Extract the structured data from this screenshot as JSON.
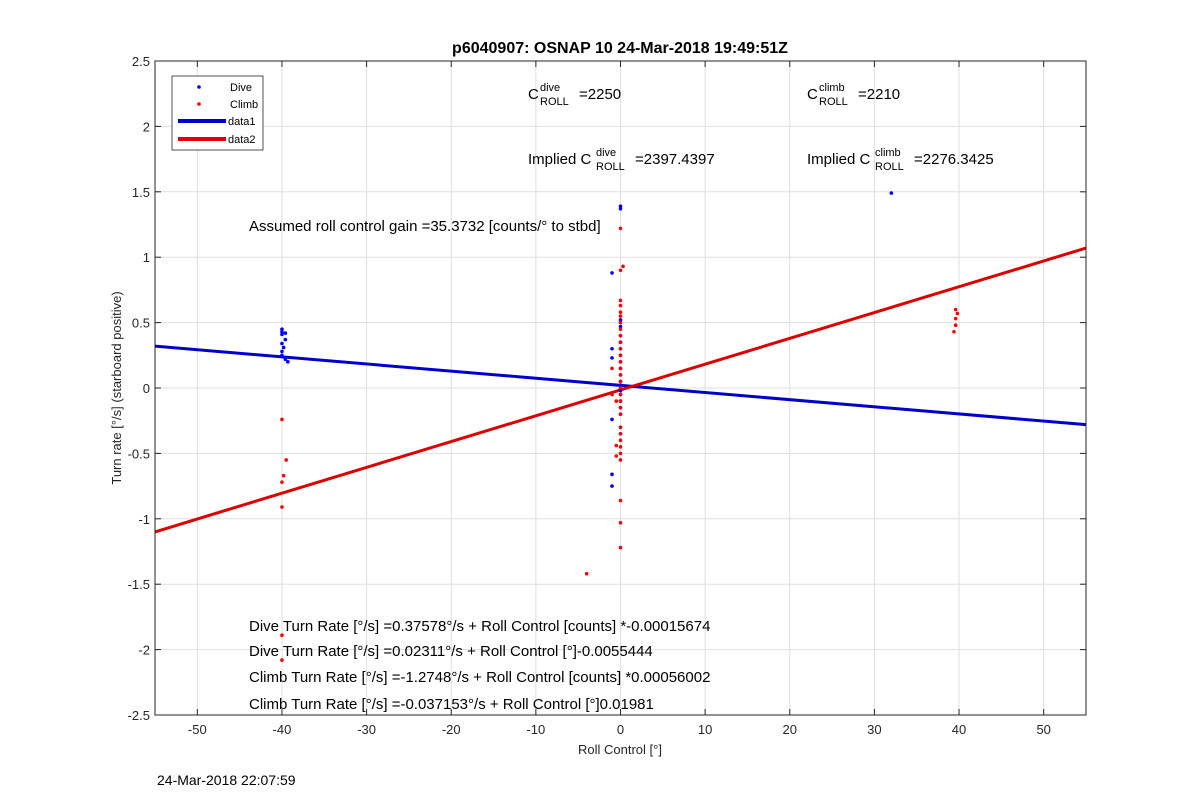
{
  "chart_data": {
    "type": "scatter",
    "title": "p6040907: OSNAP 10 24-Mar-2018 19:49:51Z",
    "xlabel": "Roll Control [°]",
    "ylabel": "Turn rate [°/s] (starboard positive)",
    "xlim": [
      -55,
      55
    ],
    "ylim": [
      -2.5,
      2.5
    ],
    "xticks": [
      -50,
      -40,
      -30,
      -20,
      -10,
      0,
      10,
      20,
      30,
      40,
      50
    ],
    "yticks": [
      -2.5,
      -2,
      -1.5,
      -1,
      -0.5,
      0,
      0.5,
      1,
      1.5,
      2,
      2.5
    ],
    "grid": true,
    "legend_position": "top-left",
    "series": [
      {
        "name": "Dive",
        "kind": "points",
        "color": "#0000ff",
        "points": [
          [
            -40,
            0.45
          ],
          [
            -40,
            0.43
          ],
          [
            -40,
            0.41
          ],
          [
            -39.6,
            0.42
          ],
          [
            -39.6,
            0.37
          ],
          [
            -40,
            0.34
          ],
          [
            -39.8,
            0.31
          ],
          [
            -40,
            0.28
          ],
          [
            -40,
            0.25
          ],
          [
            -39.6,
            0.22
          ],
          [
            -39.3,
            0.2
          ],
          [
            -1,
            0.88
          ],
          [
            -1,
            0.3
          ],
          [
            -1,
            0.23
          ],
          [
            -1,
            -0.24
          ],
          [
            -1,
            -0.66
          ],
          [
            -1,
            -0.75
          ],
          [
            0,
            1.39
          ],
          [
            0,
            1.37
          ],
          [
            0,
            0.52
          ],
          [
            0,
            0.47
          ],
          [
            0,
            0.4
          ],
          [
            0,
            0.35
          ],
          [
            0,
            0.3
          ],
          [
            0,
            0.25
          ],
          [
            0,
            0.2
          ],
          [
            0,
            0.15
          ],
          [
            0,
            0.1
          ],
          [
            0,
            0.05
          ],
          [
            0,
            0.02
          ],
          [
            0,
            -0.02
          ],
          [
            0,
            -0.05
          ],
          [
            0,
            -0.1
          ],
          [
            0,
            -0.15
          ],
          [
            0,
            -0.2
          ],
          [
            0,
            -0.3
          ],
          [
            0,
            -0.35
          ],
          [
            32,
            1.49
          ]
        ]
      },
      {
        "name": "Climb",
        "kind": "points",
        "color": "#ff0000",
        "points": [
          [
            0,
            1.22
          ],
          [
            0.3,
            0.93
          ],
          [
            0,
            0.9
          ],
          [
            0,
            0.67
          ],
          [
            0,
            0.63
          ],
          [
            0,
            0.58
          ],
          [
            0,
            0.55
          ],
          [
            0,
            0.5
          ],
          [
            0,
            0.45
          ],
          [
            0,
            0.4
          ],
          [
            0,
            0.35
          ],
          [
            0,
            0.3
          ],
          [
            0,
            0.25
          ],
          [
            0,
            0.2
          ],
          [
            0,
            0.15
          ],
          [
            0,
            0.1
          ],
          [
            0,
            0.05
          ],
          [
            0,
            0
          ],
          [
            0,
            -0.05
          ],
          [
            0,
            -0.1
          ],
          [
            0,
            -0.15
          ],
          [
            0,
            -0.2
          ],
          [
            0,
            -0.3
          ],
          [
            0,
            -0.35
          ],
          [
            0,
            -0.4
          ],
          [
            0,
            -0.45
          ],
          [
            0,
            -0.5
          ],
          [
            0,
            -0.55
          ],
          [
            0,
            -0.86
          ],
          [
            0,
            -1.03
          ],
          [
            0,
            -1.22
          ],
          [
            -1,
            0.15
          ],
          [
            -1,
            -0.05
          ],
          [
            -0.5,
            -0.1
          ],
          [
            -0.5,
            -0.44
          ],
          [
            -0.5,
            -0.52
          ],
          [
            -40,
            -0.24
          ],
          [
            -39.5,
            -0.55
          ],
          [
            -39.8,
            -0.67
          ],
          [
            -40,
            -0.72
          ],
          [
            -40,
            -0.91
          ],
          [
            -40,
            -1.89
          ],
          [
            -40,
            -2.08
          ],
          [
            -4,
            -1.42
          ],
          [
            39.6,
            0.6
          ],
          [
            39.8,
            0.57
          ],
          [
            39.6,
            0.53
          ],
          [
            39.6,
            0.48
          ],
          [
            39.4,
            0.43
          ]
        ]
      },
      {
        "name": "data1",
        "kind": "line",
        "color": "#0000cc",
        "x": [
          -55,
          55
        ],
        "y": [
          0.32,
          -0.28
        ]
      },
      {
        "name": "data2",
        "kind": "line",
        "color": "#dd0000",
        "x": [
          -55,
          55
        ],
        "y": [
          -1.1,
          1.07
        ]
      }
    ]
  },
  "annotations": {
    "c_dive": {
      "prefix": "C",
      "sup": "dive",
      "sub": "ROLL",
      "value": "=2250"
    },
    "c_climb": {
      "prefix": "C",
      "sup": "climb",
      "sub": "ROLL",
      "value": "=2210"
    },
    "implied_dive": {
      "prefix": "Implied C",
      "sup": "dive",
      "sub": "ROLL",
      "value": "=2397.4397"
    },
    "implied_climb": {
      "prefix": "Implied C",
      "sup": "climb",
      "sub": "ROLL",
      "value": "=2276.3425"
    },
    "gain": "Assumed roll control gain =35.3732 [counts/° to stbd]",
    "eq1": "Dive Turn Rate [°/s] =0.37578°/s + Roll Control [counts] *-0.00015674",
    "eq2": "Dive Turn Rate [°/s] =0.02311°/s + Roll Control [°]-0.0055444",
    "eq3": "Climb Turn Rate [°/s] =-1.2748°/s + Roll Control [counts] *0.00056002",
    "eq4": "Climb Turn Rate [°/s] =-0.037153°/s + Roll Control [°]0.01981"
  },
  "timestamp": "24-Mar-2018 22:07:59"
}
